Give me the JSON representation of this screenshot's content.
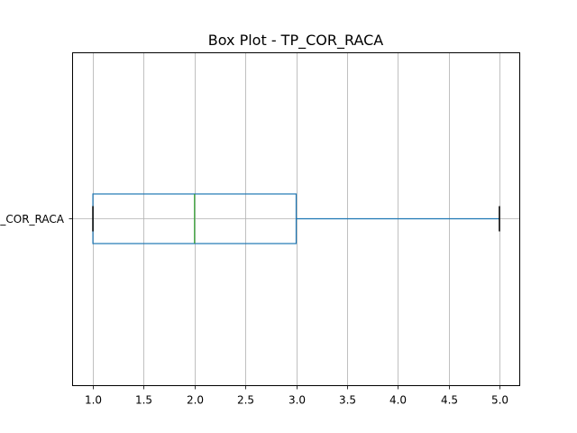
{
  "chart_data": {
    "type": "boxplot",
    "orientation": "horizontal",
    "title": "Box Plot - TP_COR_RACA",
    "category_label": "TP_COR_RACA",
    "xlim": [
      0.8,
      5.2
    ],
    "grid": true,
    "x_ticks": [
      1.0,
      1.5,
      2.0,
      2.5,
      3.0,
      3.5,
      4.0,
      4.5,
      5.0
    ],
    "x_tick_labels": [
      "1.0",
      "1.5",
      "2.0",
      "2.5",
      "3.0",
      "3.5",
      "4.0",
      "4.5",
      "5.0"
    ],
    "box": {
      "whisker_low": 1.0,
      "q1": 1.0,
      "median": 2.0,
      "q3": 3.0,
      "whisker_high": 5.0
    },
    "colors": {
      "box": "#1f77b4",
      "median": "#2ca02c",
      "cap": "#000000",
      "grid": "#b0b0b0"
    }
  }
}
